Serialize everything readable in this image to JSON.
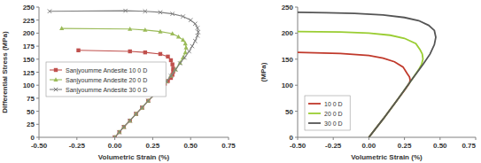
{
  "chart_data": [
    {
      "type": "line",
      "xlabel": "Volumetric Strain  (%)",
      "ylabel": "Differential Stress  (MPa)",
      "xlim": [
        -0.5,
        0.75
      ],
      "xticks": [
        {
          "value": -0.5,
          "label": "-0.50"
        },
        {
          "value": -0.25,
          "label": "-0.25"
        },
        {
          "value": 0,
          "label": "0.00"
        },
        {
          "value": 0.25,
          "label": "0.25"
        },
        {
          "value": 0.5,
          "label": "0.50"
        },
        {
          "value": 0.75,
          "label": "0.75"
        }
      ],
      "ylim": [
        0,
        250
      ],
      "yticks": [
        0,
        25,
        50,
        75,
        100,
        125,
        150,
        175,
        200,
        225,
        250
      ],
      "grid": false,
      "legend": "center left",
      "series": [
        {
          "name": "Sanjyoumme Andesite 10 0 D",
          "color": "#c0504d",
          "marker": "square",
          "line_style": "solid",
          "x": [
            0,
            0.03,
            0.06,
            0.1,
            0.14,
            0.18,
            0.22,
            0.26,
            0.3,
            0.33,
            0.35,
            0.37,
            0.38,
            0.385,
            0.385,
            0.38,
            0.37,
            0.35,
            0.3,
            0.2,
            0.1,
            -0.24
          ],
          "values": [
            0,
            10,
            20,
            32,
            45,
            57,
            70,
            82,
            95,
            103,
            108,
            114,
            120,
            126,
            132,
            140,
            148,
            155,
            160,
            163,
            165,
            167
          ]
        },
        {
          "name": "Sanjyoumme Andesite 20 0 D",
          "color": "#9bbb59",
          "marker": "triangle",
          "line_style": "solid",
          "x": [
            0,
            0.03,
            0.06,
            0.1,
            0.14,
            0.18,
            0.22,
            0.26,
            0.3,
            0.34,
            0.37,
            0.4,
            0.43,
            0.45,
            0.465,
            0.47,
            0.465,
            0.45,
            0.42,
            0.38,
            0.3,
            0.2,
            0.1,
            -0.35
          ],
          "values": [
            0,
            10,
            20,
            32,
            45,
            57,
            70,
            82,
            95,
            107,
            118,
            130,
            143,
            153,
            163,
            172,
            180,
            187,
            193,
            199,
            203,
            206,
            208,
            209
          ]
        },
        {
          "name": "Sanjyoumme Andesite 30 0 D",
          "color": "#7f7f7f",
          "marker": "x",
          "line_style": "solid",
          "x": [
            0,
            0.03,
            0.06,
            0.1,
            0.14,
            0.18,
            0.22,
            0.26,
            0.3,
            0.34,
            0.37,
            0.4,
            0.43,
            0.46,
            0.49,
            0.51,
            0.53,
            0.545,
            0.55,
            0.545,
            0.53,
            0.5,
            0.45,
            0.38,
            0.3,
            0.2,
            0.07,
            -0.43
          ],
          "values": [
            0,
            10,
            20,
            32,
            45,
            57,
            70,
            82,
            95,
            107,
            118,
            130,
            142,
            153,
            165,
            175,
            185,
            195,
            202,
            210,
            218,
            225,
            232,
            237,
            240,
            242,
            243,
            242
          ]
        }
      ]
    },
    {
      "type": "line",
      "xlabel": "Volumetric Strain  (%)",
      "ylabel": "(MPa)",
      "xlim": [
        -0.5,
        0.75
      ],
      "xticks": [
        {
          "value": -0.5,
          "label": "-0.50"
        },
        {
          "value": -0.25,
          "label": "-0.25"
        },
        {
          "value": 0,
          "label": "0.00"
        },
        {
          "value": 0.25,
          "label": "0.25"
        },
        {
          "value": 0.5,
          "label": "0.50"
        },
        {
          "value": 0.75,
          "label": "0.75"
        }
      ],
      "ylim": [
        0,
        250
      ],
      "yticks": [
        0,
        50,
        100,
        150,
        200,
        250
      ],
      "grid": false,
      "legend": "lower left",
      "series": [
        {
          "name": "10 0 D",
          "color": "#c0392b",
          "marker": "none",
          "line_style": "solid",
          "x": [
            0,
            0.1,
            0.2,
            0.25,
            0.27,
            0.285,
            0.29,
            0.285,
            0.27,
            0.24,
            0.18,
            0.1,
            0,
            -0.2,
            -0.5
          ],
          "values": [
            0,
            35,
            72,
            90,
            98,
            104,
            110,
            116,
            122,
            135,
            145,
            152,
            157,
            161,
            163
          ]
        },
        {
          "name": "20 0 D",
          "color": "#9acd32",
          "marker": "none",
          "line_style": "solid",
          "x": [
            0,
            0.1,
            0.2,
            0.3,
            0.35,
            0.37,
            0.38,
            0.375,
            0.36,
            0.33,
            0.25,
            0.15,
            0,
            -0.2,
            -0.5
          ],
          "values": [
            0,
            35,
            72,
            110,
            130,
            140,
            150,
            160,
            168,
            180,
            190,
            196,
            200,
            202,
            203
          ]
        },
        {
          "name": "30 0 D",
          "color": "#555555",
          "marker": "none",
          "line_style": "solid",
          "x": [
            0,
            0.1,
            0.2,
            0.3,
            0.38,
            0.43,
            0.46,
            0.47,
            0.46,
            0.42,
            0.35,
            0.25,
            0.1,
            -0.1,
            -0.3,
            -0.5
          ],
          "values": [
            0,
            35,
            72,
            110,
            140,
            160,
            178,
            192,
            205,
            215,
            224,
            230,
            235,
            238,
            239,
            240
          ]
        }
      ]
    }
  ]
}
